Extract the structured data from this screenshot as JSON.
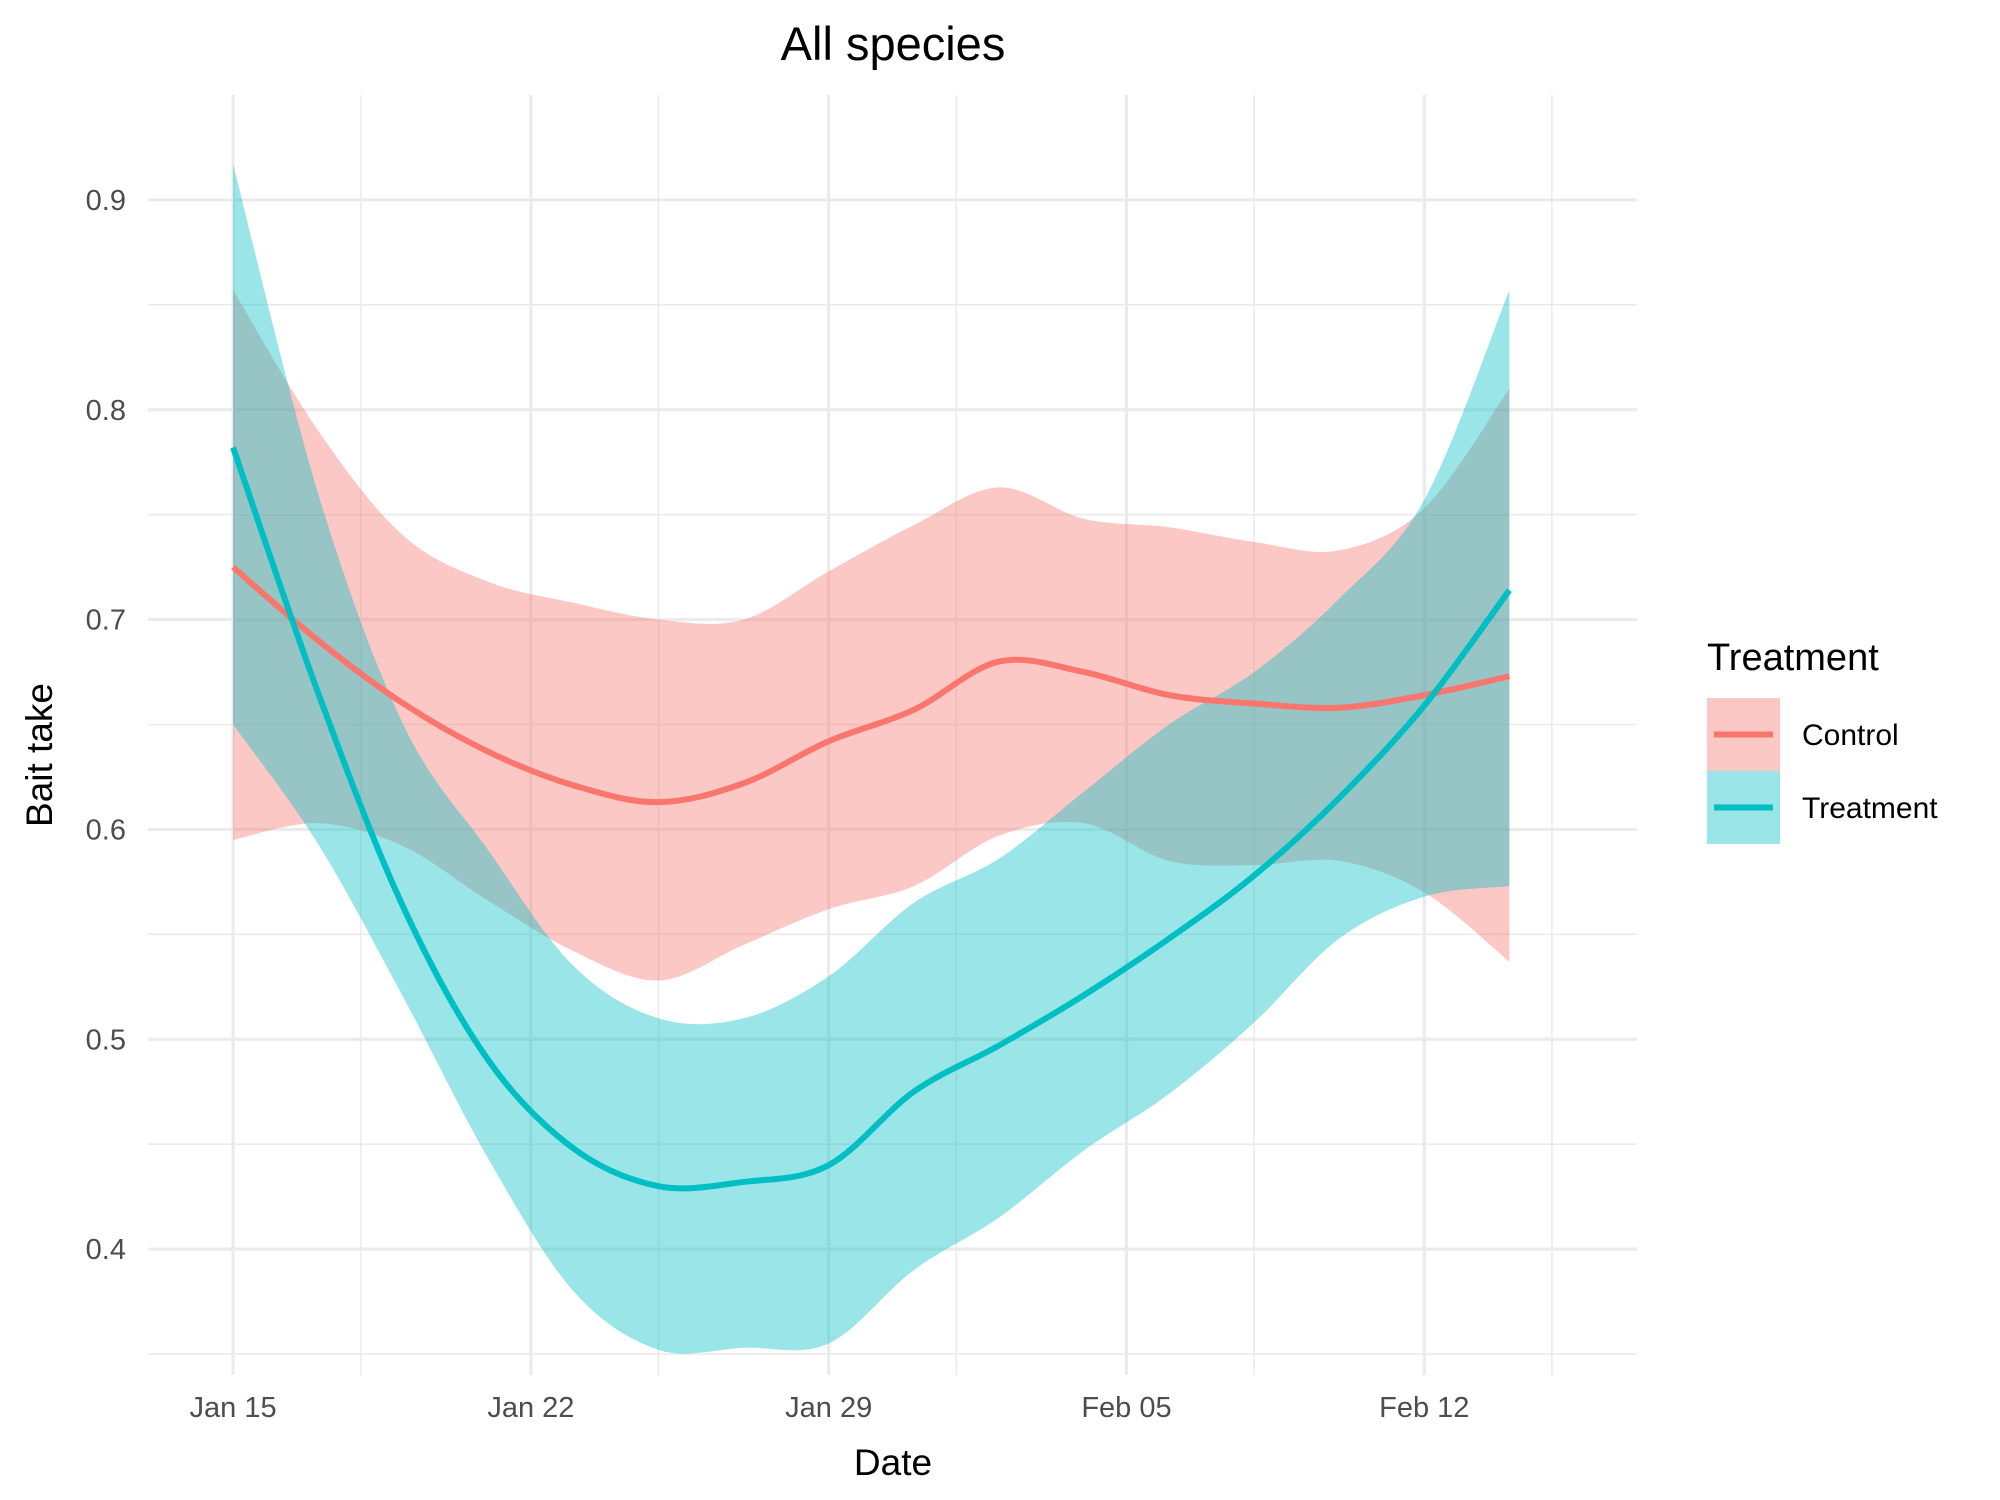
{
  "chart_data": {
    "type": "line",
    "title": "All species",
    "xlabel": "Date",
    "ylabel": "Bait take",
    "x_ticks": [
      "Jan 15",
      "Jan 22",
      "Jan 29",
      "Feb 05",
      "Feb 12"
    ],
    "x_tick_dates": [
      "2024-01-15",
      "2024-01-22",
      "2024-01-29",
      "2024-02-05",
      "2024-02-12"
    ],
    "y_ticks": [
      "0.4",
      "0.5",
      "0.6",
      "0.7",
      "0.8",
      "0.9"
    ],
    "ylim": [
      0.34,
      0.95
    ],
    "xlim": [
      "2024-01-13",
      "2024-02-17"
    ],
    "grid": true,
    "legend": {
      "title": "Treatment",
      "placement": "right",
      "entries": [
        "Control",
        "Treatment"
      ]
    },
    "series": [
      {
        "name": "Control",
        "color": "#F8766D",
        "x": [
          "2024-01-15",
          "2024-01-17",
          "2024-01-19",
          "2024-01-21",
          "2024-01-23",
          "2024-01-25",
          "2024-01-27",
          "2024-01-29",
          "2024-01-31",
          "2024-02-02",
          "2024-02-04",
          "2024-02-06",
          "2024-02-08",
          "2024-02-10",
          "2024-02-12",
          "2024-02-14"
        ],
        "y": [
          0.725,
          0.69,
          0.66,
          0.637,
          0.621,
          0.613,
          0.622,
          0.642,
          0.657,
          0.68,
          0.675,
          0.664,
          0.66,
          0.658,
          0.664,
          0.673
        ],
        "lower": [
          0.595,
          0.603,
          0.592,
          0.566,
          0.542,
          0.528,
          0.545,
          0.562,
          0.573,
          0.597,
          0.603,
          0.585,
          0.583,
          0.585,
          0.57,
          0.537
        ],
        "upper": [
          0.857,
          0.79,
          0.74,
          0.718,
          0.708,
          0.7,
          0.7,
          0.723,
          0.745,
          0.763,
          0.748,
          0.744,
          0.737,
          0.733,
          0.753,
          0.81
        ]
      },
      {
        "name": "Treatment",
        "color": "#00BFC4",
        "x": [
          "2024-01-15",
          "2024-01-17",
          "2024-01-19",
          "2024-01-21",
          "2024-01-23",
          "2024-01-25",
          "2024-01-27",
          "2024-01-29",
          "2024-01-31",
          "2024-02-02",
          "2024-02-04",
          "2024-02-06",
          "2024-02-08",
          "2024-02-10",
          "2024-02-12",
          "2024-02-14"
        ],
        "y": [
          0.782,
          0.665,
          0.563,
          0.49,
          0.448,
          0.43,
          0.432,
          0.44,
          0.475,
          0.497,
          0.521,
          0.548,
          0.578,
          0.615,
          0.659,
          0.714
        ],
        "lower": [
          0.65,
          0.593,
          0.52,
          0.443,
          0.38,
          0.352,
          0.353,
          0.355,
          0.39,
          0.415,
          0.447,
          0.474,
          0.508,
          0.548,
          0.568,
          0.573
        ],
        "upper": [
          0.917,
          0.76,
          0.65,
          0.59,
          0.535,
          0.51,
          0.51,
          0.53,
          0.565,
          0.586,
          0.618,
          0.65,
          0.675,
          0.71,
          0.757,
          0.857
        ]
      }
    ]
  }
}
